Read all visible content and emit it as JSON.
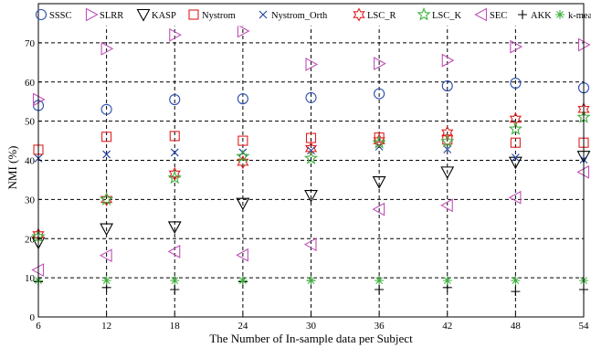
{
  "chart_data": {
    "type": "scatter",
    "title": "",
    "xlabel": "The Number of In-sample data per Subject",
    "ylabel": "NMI (%)",
    "xlim": [
      6,
      54
    ],
    "ylim": [
      0,
      80
    ],
    "xticks": [
      "6",
      "12",
      "18",
      "24",
      "30",
      "36",
      "42",
      "48",
      "54"
    ],
    "yticks": [
      "0",
      "10",
      "20",
      "30",
      "40",
      "50",
      "60",
      "70"
    ],
    "grid": "dashed",
    "legend_position": "top",
    "x": [
      6,
      12,
      18,
      24,
      30,
      36,
      42,
      48,
      54
    ],
    "series": [
      {
        "name": "SSSC",
        "marker": "circle",
        "color": "#2a4fb0",
        "values": [
          54,
          53,
          55.5,
          55.7,
          56,
          57,
          59,
          59.7,
          58.5
        ]
      },
      {
        "name": "SLRR",
        "marker": "triangle-right",
        "color": "#c050b8",
        "values": [
          55.5,
          68.5,
          72,
          73,
          64.5,
          64.7,
          65.5,
          69,
          69.5
        ]
      },
      {
        "name": "KASP",
        "marker": "triangle-down",
        "color": "#000000",
        "values": [
          19,
          22.5,
          23,
          29,
          31,
          34.5,
          37,
          39.5,
          41
        ]
      },
      {
        "name": "Nystrom",
        "marker": "square",
        "color": "#e02020",
        "values": [
          42.7,
          46,
          46.2,
          45,
          45.7,
          45.8,
          45.3,
          44.5,
          44.5
        ]
      },
      {
        "name": "Nystrom_Orth",
        "marker": "x",
        "color": "#2040a0",
        "values": [
          40.5,
          41.5,
          42,
          42,
          42.5,
          43.5,
          42.8,
          40.7,
          40.2
        ]
      },
      {
        "name": "LSC_R",
        "marker": "hexagram",
        "color": "#e02020",
        "values": [
          21,
          30,
          36.5,
          39.5,
          43,
          45,
          47,
          50.5,
          53
        ]
      },
      {
        "name": "LSC_K",
        "marker": "pentagram",
        "color": "#40b040",
        "values": [
          20.5,
          30,
          35.5,
          41,
          40.5,
          44.5,
          44.8,
          48,
          51
        ]
      },
      {
        "name": "SEC",
        "marker": "triangle-left",
        "color": "#c050b8",
        "values": [
          12,
          15.7,
          16.7,
          15.8,
          18.5,
          27.5,
          28.5,
          30.5,
          37
        ]
      },
      {
        "name": "AKK",
        "marker": "plus",
        "color": "#000000",
        "values": [
          9,
          7.5,
          7,
          9,
          9.3,
          7,
          7.5,
          6.5,
          7
        ]
      },
      {
        "name": "k-means",
        "marker": "asterisk",
        "color": "#40b040",
        "values": [
          9.3,
          9.3,
          9.3,
          9.3,
          9.3,
          9.3,
          9.3,
          9.3,
          9.3
        ]
      }
    ]
  }
}
